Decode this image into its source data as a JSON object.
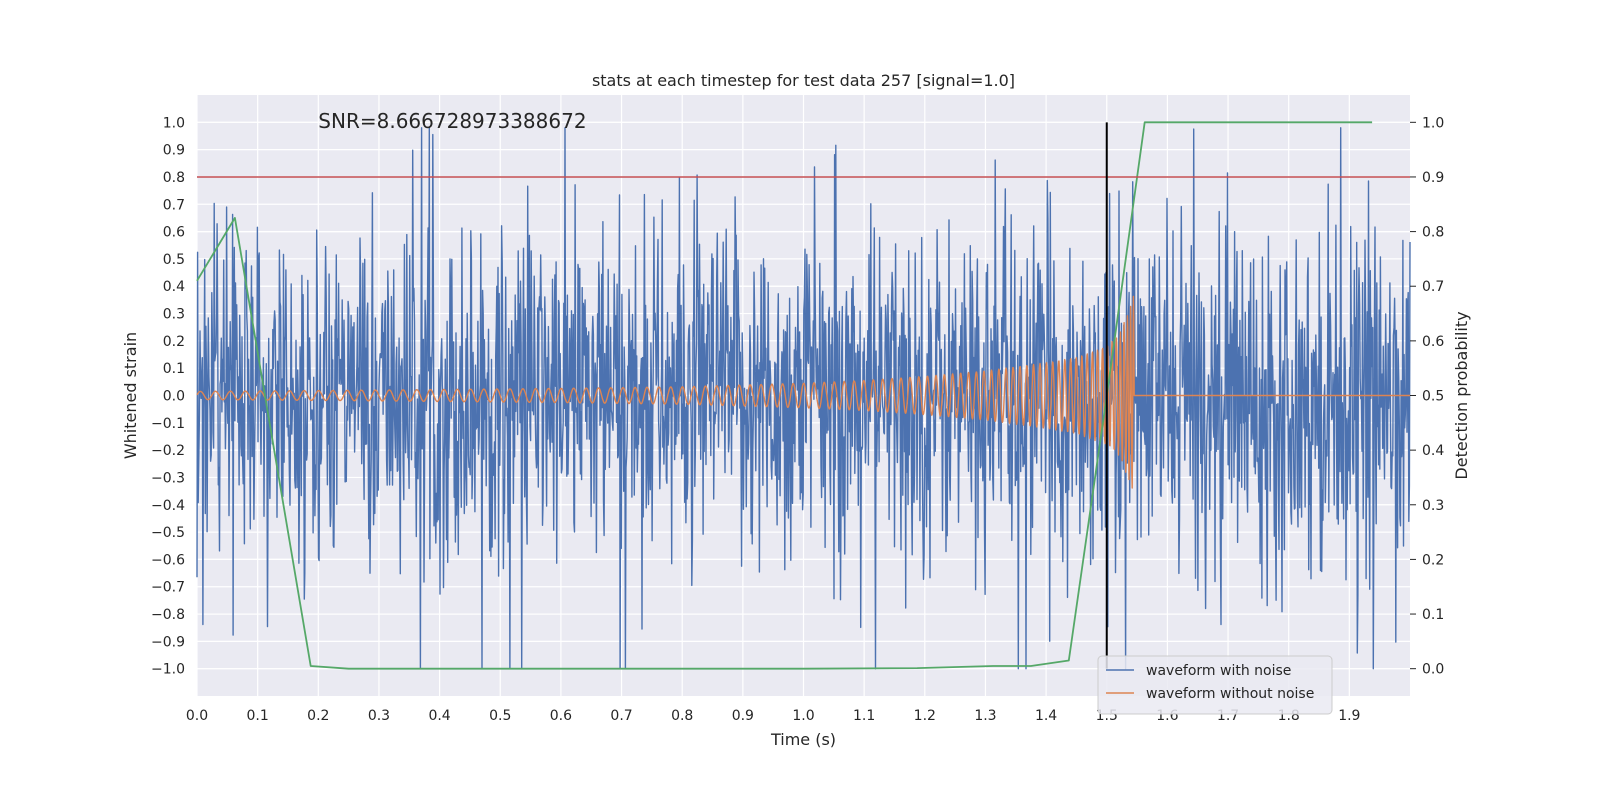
{
  "chart_data": {
    "type": "line",
    "title": "stats at each timestep for test data 257 [signal=1.0]",
    "xlabel": "Time (s)",
    "ylabel": "Whitened strain",
    "y2label": "Detection probability",
    "annotation": "SNR=8.666728973388672",
    "xlim": [
      0.0,
      2.0
    ],
    "ylim": [
      -1.1,
      1.1
    ],
    "y2lim": [
      -0.05,
      1.05
    ],
    "xticks": [
      0.0,
      0.1,
      0.2,
      0.3,
      0.4,
      0.5,
      0.6,
      0.7,
      0.8,
      0.9,
      1.0,
      1.1,
      1.2,
      1.3,
      1.4,
      1.5,
      1.6,
      1.7,
      1.8,
      1.9
    ],
    "xtick_labels": [
      "0.0",
      "0.1",
      "0.2",
      "0.3",
      "0.4",
      "0.5",
      "0.6",
      "0.7",
      "0.8",
      "0.9",
      "1.0",
      "1.1",
      "1.2",
      "1.3",
      "1.4",
      "1.5",
      "1.6",
      "1.7",
      "1.8",
      "1.9"
    ],
    "yticks": [
      -1.0,
      -0.9,
      -0.8,
      -0.7,
      -0.6,
      -0.5,
      -0.4,
      -0.3,
      -0.2,
      -0.1,
      0.0,
      0.1,
      0.2,
      0.3,
      0.4,
      0.5,
      0.6,
      0.7,
      0.8,
      0.9,
      1.0
    ],
    "ytick_labels": [
      "−1.0",
      "−0.9",
      "−0.8",
      "−0.7",
      "−0.6",
      "−0.5",
      "−0.4",
      "−0.3",
      "−0.2",
      "−0.1",
      "0.0",
      "0.1",
      "0.2",
      "0.3",
      "0.4",
      "0.5",
      "0.6",
      "0.7",
      "0.8",
      "0.9",
      "1.0"
    ],
    "y2ticks": [
      0.0,
      0.1,
      0.2,
      0.3,
      0.4,
      0.5,
      0.6,
      0.7,
      0.8,
      0.9,
      1.0
    ],
    "y2tick_labels": [
      "0.0",
      "0.1",
      "0.2",
      "0.3",
      "0.4",
      "0.5",
      "0.6",
      "0.7",
      "0.8",
      "0.9",
      "1.0"
    ],
    "grid": true,
    "legend_position": "bottom-right",
    "series": [
      {
        "name": "waveform with noise",
        "color": "#4c72b0",
        "axis": "left",
        "kind": "noise",
        "sample_count": 2048,
        "amplitude_range": [
          -1.0,
          1.0
        ]
      },
      {
        "name": "waveform without noise",
        "color": "#dd8452",
        "axis": "left",
        "kind": "chirp",
        "merger_time": 1.545,
        "x": [
          0.0,
          0.2,
          0.4,
          0.6,
          0.8,
          1.0,
          1.1,
          1.2,
          1.3,
          1.4,
          1.45,
          1.5,
          1.52,
          1.54,
          1.545,
          1.55,
          1.6,
          2.0
        ],
        "envelope": [
          0.015,
          0.018,
          0.022,
          0.026,
          0.032,
          0.045,
          0.055,
          0.07,
          0.09,
          0.12,
          0.14,
          0.18,
          0.22,
          0.33,
          0.38,
          0.0,
          0.0,
          0.0
        ],
        "freq_hz": [
          40,
          42,
          45,
          48,
          52,
          58,
          63,
          70,
          80,
          95,
          108,
          125,
          150,
          200,
          220,
          0,
          0,
          0
        ]
      },
      {
        "name": "",
        "color": "#55a868",
        "axis": "right",
        "kind": "probability",
        "x": [
          0.0,
          0.0625,
          0.1875,
          0.25,
          0.5,
          0.75,
          1.0,
          1.1875,
          1.3125,
          1.375,
          1.4375,
          1.5,
          1.5625,
          1.9375
        ],
        "y": [
          0.71,
          0.825,
          0.005,
          0.0,
          0.0,
          0.0,
          0.0,
          0.001,
          0.005,
          0.005,
          0.015,
          0.5,
          1.0,
          1.0
        ]
      }
    ],
    "hlines": [
      {
        "axis": "right",
        "value": 0.9,
        "color": "#c44e52"
      }
    ],
    "vlines": [
      {
        "value": 1.5,
        "color": "#000000",
        "y2_range": [
          0.0,
          1.0
        ]
      }
    ]
  }
}
